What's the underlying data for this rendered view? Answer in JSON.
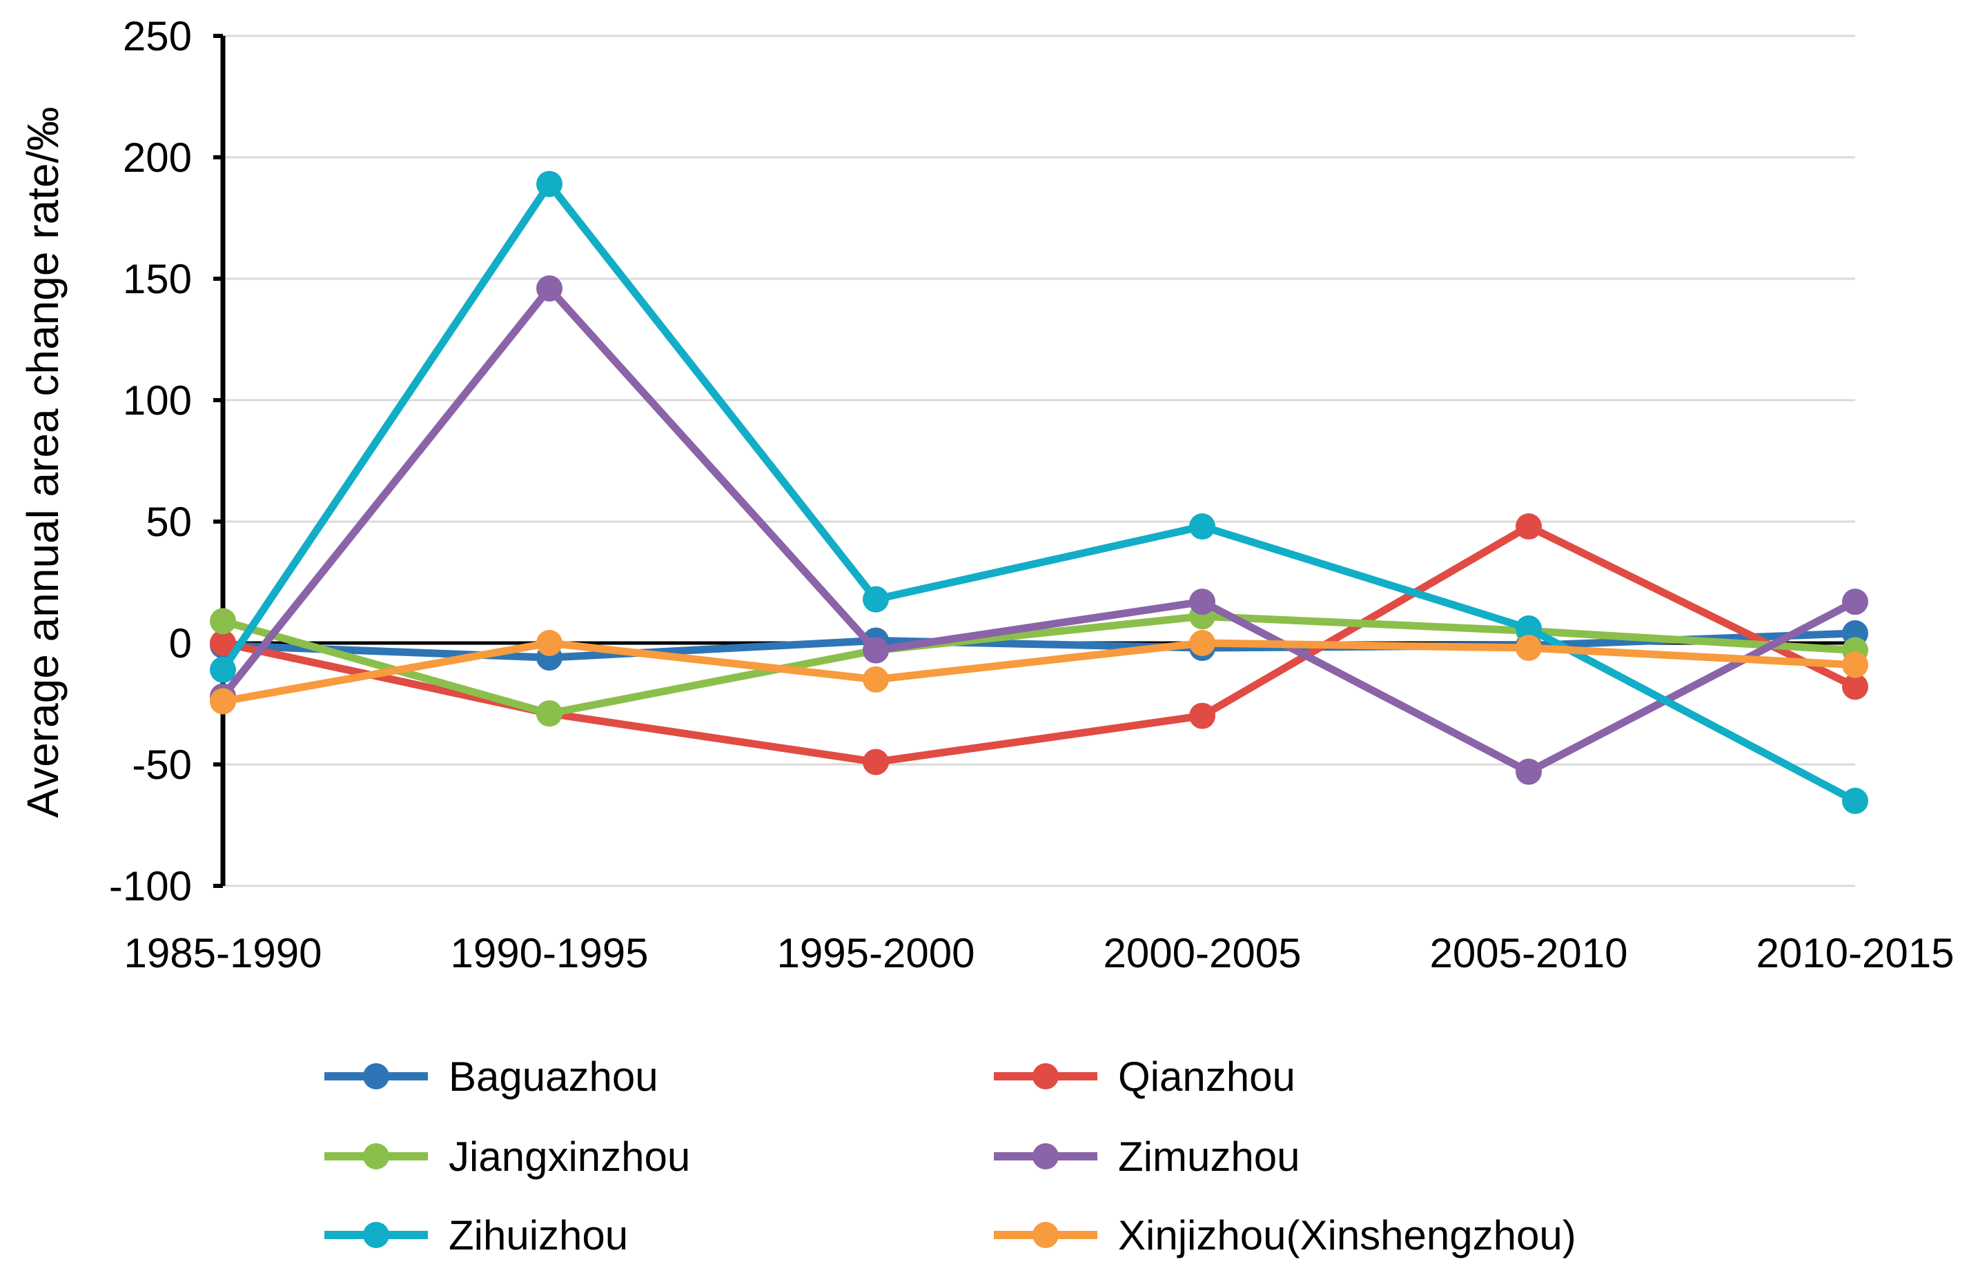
{
  "chart_data": {
    "type": "line",
    "title": "",
    "xlabel": "",
    "ylabel": "Average annual area change rate/‰",
    "ylim": [
      -100,
      250
    ],
    "yticks": [
      -100,
      -50,
      0,
      50,
      100,
      150,
      200,
      250
    ],
    "grid": true,
    "legend_position": "bottom",
    "categories": [
      "1985-1990",
      "1990-1995",
      "1995-2000",
      "2000-2005",
      "2005-2010",
      "2010-2015"
    ],
    "series": [
      {
        "name": "Baguazhou",
        "color": "#2E75B6",
        "values": [
          -1,
          -6,
          1,
          -2,
          -1,
          4
        ]
      },
      {
        "name": "Qianzhou",
        "color": "#E04B44",
        "values": [
          0,
          -29,
          -49,
          -30,
          48,
          -18
        ]
      },
      {
        "name": "Jiangxinzhou",
        "color": "#8BBF4B",
        "values": [
          9,
          -29,
          -3,
          11,
          5,
          -3
        ]
      },
      {
        "name": "Zimuzhou",
        "color": "#8A63A8",
        "values": [
          -22,
          146,
          -3,
          17,
          -53,
          17
        ]
      },
      {
        "name": "Zihuizhou",
        "color": "#12ADC6",
        "values": [
          -11,
          189,
          18,
          48,
          6,
          -65
        ]
      },
      {
        "name": "Xinjizhou(Xinshengzhou)",
        "color": "#F79B3E",
        "values": [
          -24,
          0,
          -15,
          0,
          -2,
          -9
        ]
      }
    ]
  }
}
